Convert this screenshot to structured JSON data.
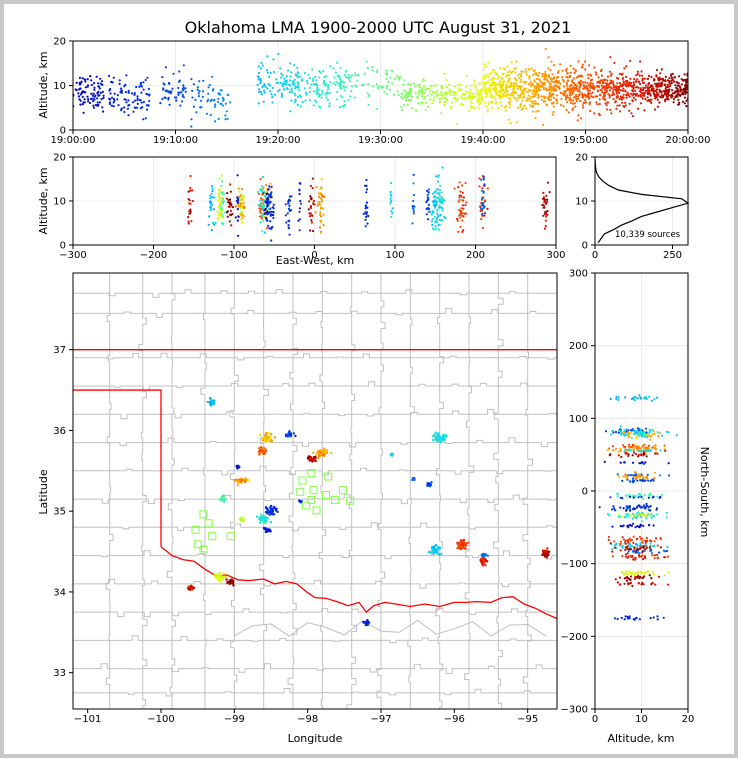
{
  "chart_data": [
    {
      "id": "time_height",
      "type": "scatter",
      "title": "Oklahoma LMA 1900-2000 UTC August 31, 2021",
      "xlabel": "",
      "ylabel": "Altitude, km",
      "xticks": [
        "19:00:00",
        "19:10:00",
        "19:20:00",
        "19:30:00",
        "19:40:00",
        "19:50:00",
        "20:00:00"
      ],
      "xlim_minutes": [
        0,
        60
      ],
      "ylim": [
        0,
        20
      ],
      "yticks": [
        0,
        10,
        20
      ],
      "color_mode": "time",
      "clusters": [
        {
          "t_start": 0.0,
          "t_end": 3.0,
          "z": 8.5,
          "spread": 3.5,
          "n": 90
        },
        {
          "t_start": 3.5,
          "t_end": 7.5,
          "z": 7.5,
          "spread": 4.0,
          "n": 90
        },
        {
          "t_start": 8.5,
          "t_end": 11.0,
          "z": 9.0,
          "spread": 3.5,
          "n": 50
        },
        {
          "t_start": 11.5,
          "t_end": 15.5,
          "z": 7.0,
          "spread": 4.0,
          "n": 60
        },
        {
          "t_start": 18.0,
          "t_end": 27.0,
          "z": 10.0,
          "spread": 4.0,
          "n": 240
        },
        {
          "t_start": 27.0,
          "t_end": 32.0,
          "z": 10.5,
          "spread": 3.5,
          "n": 60
        },
        {
          "t_start": 32.0,
          "t_end": 40.0,
          "z": 8.0,
          "spread": 3.0,
          "n": 220
        },
        {
          "t_start": 40.0,
          "t_end": 50.0,
          "z": 9.5,
          "spread": 4.5,
          "n": 650
        },
        {
          "t_start": 50.0,
          "t_end": 56.0,
          "z": 9.0,
          "spread": 4.0,
          "n": 320
        },
        {
          "t_start": 56.0,
          "t_end": 60.0,
          "z": 9.0,
          "spread": 3.0,
          "n": 260
        }
      ]
    },
    {
      "id": "east_west_height",
      "type": "scatter",
      "xlabel": "East-West, km",
      "ylabel": "Altitude, km",
      "xlim": [
        -300,
        300
      ],
      "xticks": [
        -300,
        -200,
        -100,
        0,
        100,
        200,
        300
      ],
      "ylim": [
        0,
        20
      ],
      "yticks": [
        0,
        10,
        20
      ]
    },
    {
      "id": "altitude_histogram",
      "type": "line",
      "xlim": [
        0,
        300
      ],
      "xticks": [
        0,
        250
      ],
      "ylim": [
        0,
        20
      ],
      "yticks": [
        0,
        10,
        20
      ],
      "annotation": "10,339 sources",
      "profile": [
        {
          "z": 0.5,
          "n": 10
        },
        {
          "z": 1.5,
          "n": 20
        },
        {
          "z": 2.5,
          "n": 30
        },
        {
          "z": 3.5,
          "n": 60
        },
        {
          "z": 4.5,
          "n": 85
        },
        {
          "z": 5.5,
          "n": 120
        },
        {
          "z": 6.5,
          "n": 150
        },
        {
          "z": 7.5,
          "n": 200
        },
        {
          "z": 8.5,
          "n": 250
        },
        {
          "z": 9.5,
          "n": 300
        },
        {
          "z": 10.5,
          "n": 280
        },
        {
          "z": 11.5,
          "n": 150
        },
        {
          "z": 12.5,
          "n": 75
        },
        {
          "z": 13.5,
          "n": 45
        },
        {
          "z": 14.5,
          "n": 25
        },
        {
          "z": 15.5,
          "n": 12
        },
        {
          "z": 16.5,
          "n": 5
        },
        {
          "z": 17.5,
          "n": 2
        },
        {
          "z": 18.5,
          "n": 1
        },
        {
          "z": 19.5,
          "n": 0
        }
      ]
    },
    {
      "id": "plan_view",
      "type": "scatter",
      "xlabel": "Longitude",
      "ylabel": "Latitude",
      "xlim": [
        -101.2,
        -94.6
      ],
      "ylim": [
        32.55,
        37.95
      ],
      "xticks": [
        -101,
        -100,
        -99,
        -98,
        -97,
        -96,
        -95
      ],
      "yticks": [
        33,
        34,
        35,
        36,
        37
      ],
      "state_boundary_color": "#ff0000",
      "county_line_color": "#c0c0c0",
      "station_color": "#80ff40",
      "stations": [
        {
          "lon": -97.95,
          "lat": 35.47
        },
        {
          "lon": -98.07,
          "lat": 35.38
        },
        {
          "lon": -97.72,
          "lat": 35.43
        },
        {
          "lon": -98.1,
          "lat": 35.24
        },
        {
          "lon": -97.92,
          "lat": 35.26
        },
        {
          "lon": -97.52,
          "lat": 35.26
        },
        {
          "lon": -97.75,
          "lat": 35.2
        },
        {
          "lon": -97.42,
          "lat": 35.13
        },
        {
          "lon": -97.63,
          "lat": 35.14
        },
        {
          "lon": -98.02,
          "lat": 35.07
        },
        {
          "lon": -97.95,
          "lat": 35.14
        },
        {
          "lon": -97.88,
          "lat": 35.01
        },
        {
          "lon": -99.42,
          "lat": 34.96
        },
        {
          "lon": -99.35,
          "lat": 34.85
        },
        {
          "lon": -99.53,
          "lat": 34.77
        },
        {
          "lon": -99.3,
          "lat": 34.69
        },
        {
          "lon": -99.5,
          "lat": 34.59
        },
        {
          "lon": -99.42,
          "lat": 34.52
        },
        {
          "lon": -99.05,
          "lat": 34.69
        }
      ],
      "storms": [
        {
          "lon": -99.3,
          "lat": 36.35,
          "r": 0.05,
          "t": 18
        },
        {
          "lon": -99.15,
          "lat": 35.15,
          "r": 0.05,
          "t": 28
        },
        {
          "lon": -98.9,
          "lat": 35.38,
          "r": 0.07,
          "t": 46
        },
        {
          "lon": -98.95,
          "lat": 35.55,
          "r": 0.02,
          "t": 2
        },
        {
          "lon": -98.55,
          "lat": 35.9,
          "r": 0.08,
          "t": 44
        },
        {
          "lon": -98.62,
          "lat": 35.75,
          "r": 0.05,
          "t": 50
        },
        {
          "lon": -98.25,
          "lat": 35.95,
          "r": 0.05,
          "t": 8
        },
        {
          "lon": -97.82,
          "lat": 35.72,
          "r": 0.08,
          "t": 46
        },
        {
          "lon": -97.95,
          "lat": 35.65,
          "r": 0.05,
          "t": 58
        },
        {
          "lon": -98.5,
          "lat": 35.0,
          "r": 0.08,
          "t": 6
        },
        {
          "lon": -98.6,
          "lat": 34.9,
          "r": 0.08,
          "t": 24
        },
        {
          "lon": -98.9,
          "lat": 34.9,
          "r": 0.03,
          "t": 38
        },
        {
          "lon": -98.55,
          "lat": 34.77,
          "r": 0.04,
          "t": 2
        },
        {
          "lon": -96.2,
          "lat": 35.92,
          "r": 0.1,
          "t": 22
        },
        {
          "lon": -96.35,
          "lat": 35.33,
          "r": 0.04,
          "t": 10
        },
        {
          "lon": -96.25,
          "lat": 34.52,
          "r": 0.08,
          "t": 20
        },
        {
          "lon": -95.9,
          "lat": 34.58,
          "r": 0.08,
          "t": 52
        },
        {
          "lon": -95.6,
          "lat": 34.38,
          "r": 0.06,
          "t": 54
        },
        {
          "lon": -95.6,
          "lat": 34.45,
          "r": 0.04,
          "t": 12
        },
        {
          "lon": -94.75,
          "lat": 34.48,
          "r": 0.06,
          "t": 57
        },
        {
          "lon": -99.2,
          "lat": 34.18,
          "r": 0.06,
          "t": 40
        },
        {
          "lon": -99.05,
          "lat": 34.12,
          "r": 0.05,
          "t": 59
        },
        {
          "lon": -99.6,
          "lat": 34.05,
          "r": 0.04,
          "t": 56
        },
        {
          "lon": -97.2,
          "lat": 33.62,
          "r": 0.04,
          "t": 5
        },
        {
          "lon": -96.85,
          "lat": 35.7,
          "r": 0.02,
          "t": 20
        },
        {
          "lon": -96.55,
          "lat": 35.4,
          "r": 0.02,
          "t": 12
        },
        {
          "lon": -98.1,
          "lat": 35.12,
          "r": 0.02,
          "t": 6
        }
      ]
    },
    {
      "id": "north_south_height",
      "type": "scatter",
      "xlabel": "Altitude, km",
      "ylabel": "North-South, km",
      "xlim": [
        0,
        20
      ],
      "xticks": [
        0,
        10,
        20
      ],
      "ylim": [
        -300,
        300
      ],
      "yticks": [
        -300,
        -200,
        -100,
        0,
        100,
        200,
        300
      ]
    }
  ]
}
